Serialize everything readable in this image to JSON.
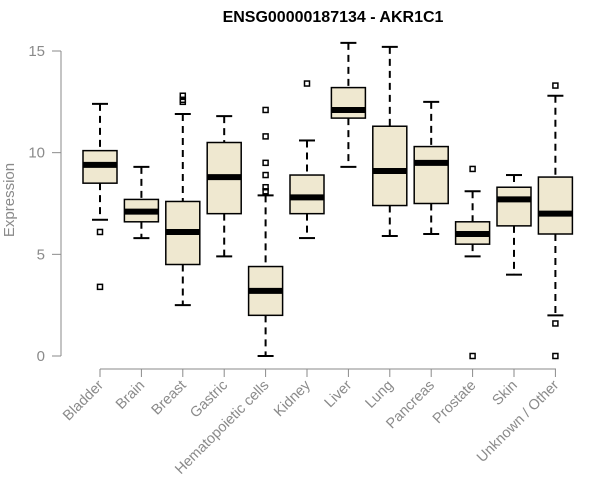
{
  "chart_data": {
    "type": "boxplot",
    "title": "ENSG00000187134 - AKR1C1",
    "xlabel": "",
    "ylabel": "Expression",
    "ylim": [
      0,
      15.3
    ],
    "yticks": [
      0,
      5,
      10,
      15
    ],
    "grid": false,
    "box_color": "#efe8d0",
    "categories": [
      "Bladder",
      "Brain",
      "Breast",
      "Gastric",
      "Hematopoietic cells",
      "Kidney",
      "Liver",
      "Lung",
      "Pancreas",
      "Prostate",
      "Skin",
      "Unknown / Other"
    ],
    "boxes": [
      {
        "low": 6.7,
        "q1": 8.5,
        "median": 9.4,
        "q3": 10.1,
        "high": 12.4,
        "outliers": [
          6.1,
          3.4
        ]
      },
      {
        "low": 5.8,
        "q1": 6.6,
        "median": 7.1,
        "q3": 7.7,
        "high": 9.3,
        "outliers": []
      },
      {
        "low": 2.5,
        "q1": 4.5,
        "median": 6.1,
        "q3": 7.6,
        "high": 11.9,
        "outliers": [
          12.5,
          12.6,
          12.8
        ]
      },
      {
        "low": 4.9,
        "q1": 7.0,
        "median": 8.8,
        "q3": 10.5,
        "high": 11.8,
        "outliers": []
      },
      {
        "low": 0.0,
        "q1": 2.0,
        "median": 3.2,
        "q3": 4.4,
        "high": 7.9,
        "outliers": [
          8.1,
          8.3,
          8.9,
          9.5,
          10.8,
          12.1
        ]
      },
      {
        "low": 5.8,
        "q1": 7.0,
        "median": 7.8,
        "q3": 8.9,
        "high": 10.6,
        "outliers": [
          13.4
        ]
      },
      {
        "low": 9.3,
        "q1": 11.7,
        "median": 12.1,
        "q3": 13.2,
        "high": 15.4,
        "outliers": []
      },
      {
        "low": 5.9,
        "q1": 7.4,
        "median": 9.1,
        "q3": 11.3,
        "high": 15.2,
        "outliers": []
      },
      {
        "low": 6.0,
        "q1": 7.5,
        "median": 9.5,
        "q3": 10.3,
        "high": 12.5,
        "outliers": []
      },
      {
        "low": 4.9,
        "q1": 5.5,
        "median": 6.0,
        "q3": 6.6,
        "high": 8.1,
        "outliers": [
          9.2,
          0.0
        ]
      },
      {
        "low": 4.0,
        "q1": 6.4,
        "median": 7.7,
        "q3": 8.3,
        "high": 8.9,
        "outliers": []
      },
      {
        "low": 2.0,
        "q1": 6.0,
        "median": 7.0,
        "q3": 8.8,
        "high": 12.8,
        "outliers": [
          13.3,
          1.6,
          0.0
        ]
      }
    ]
  }
}
